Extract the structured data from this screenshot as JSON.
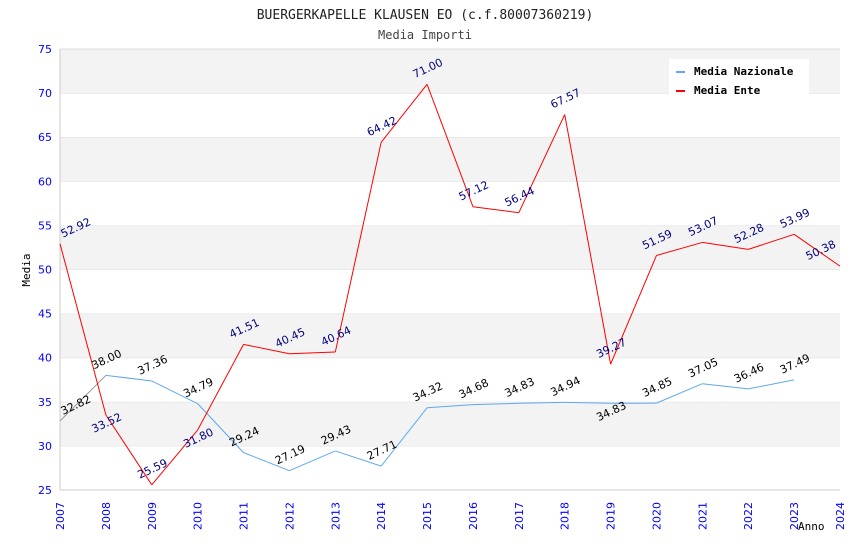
{
  "chart_data": {
    "type": "line",
    "title": "BUERGERKAPELLE KLAUSEN EO (c.f.80007360219)",
    "subtitle": "Media Importi",
    "xlabel": "Anno",
    "ylabel": "Media",
    "xlim": [
      2007,
      2024
    ],
    "ylim": [
      25,
      75
    ],
    "yticks": [
      25,
      30,
      35,
      40,
      45,
      50,
      55,
      60,
      65,
      70,
      75
    ],
    "x": [
      2007,
      2008,
      2009,
      2010,
      2011,
      2012,
      2013,
      2014,
      2015,
      2016,
      2017,
      2018,
      2019,
      2020,
      2021,
      2022,
      2023,
      2024
    ],
    "legend_position": "top-right",
    "series": [
      {
        "name": "Media Nazionale",
        "color": "#5fa8f0",
        "label_color": "#000000",
        "values": [
          32.82,
          38.0,
          37.36,
          34.79,
          29.24,
          27.19,
          29.43,
          27.71,
          34.32,
          34.68,
          34.83,
          34.94,
          34.83,
          34.85,
          37.05,
          36.46,
          37.49,
          null
        ]
      },
      {
        "name": "Media Ente",
        "color": "#ff0000",
        "label_color": "#000080",
        "values": [
          52.92,
          33.52,
          25.59,
          31.8,
          41.51,
          40.45,
          40.64,
          64.42,
          71.0,
          57.12,
          56.44,
          67.57,
          39.27,
          51.59,
          53.07,
          52.28,
          53.99,
          50.38
        ]
      }
    ]
  }
}
